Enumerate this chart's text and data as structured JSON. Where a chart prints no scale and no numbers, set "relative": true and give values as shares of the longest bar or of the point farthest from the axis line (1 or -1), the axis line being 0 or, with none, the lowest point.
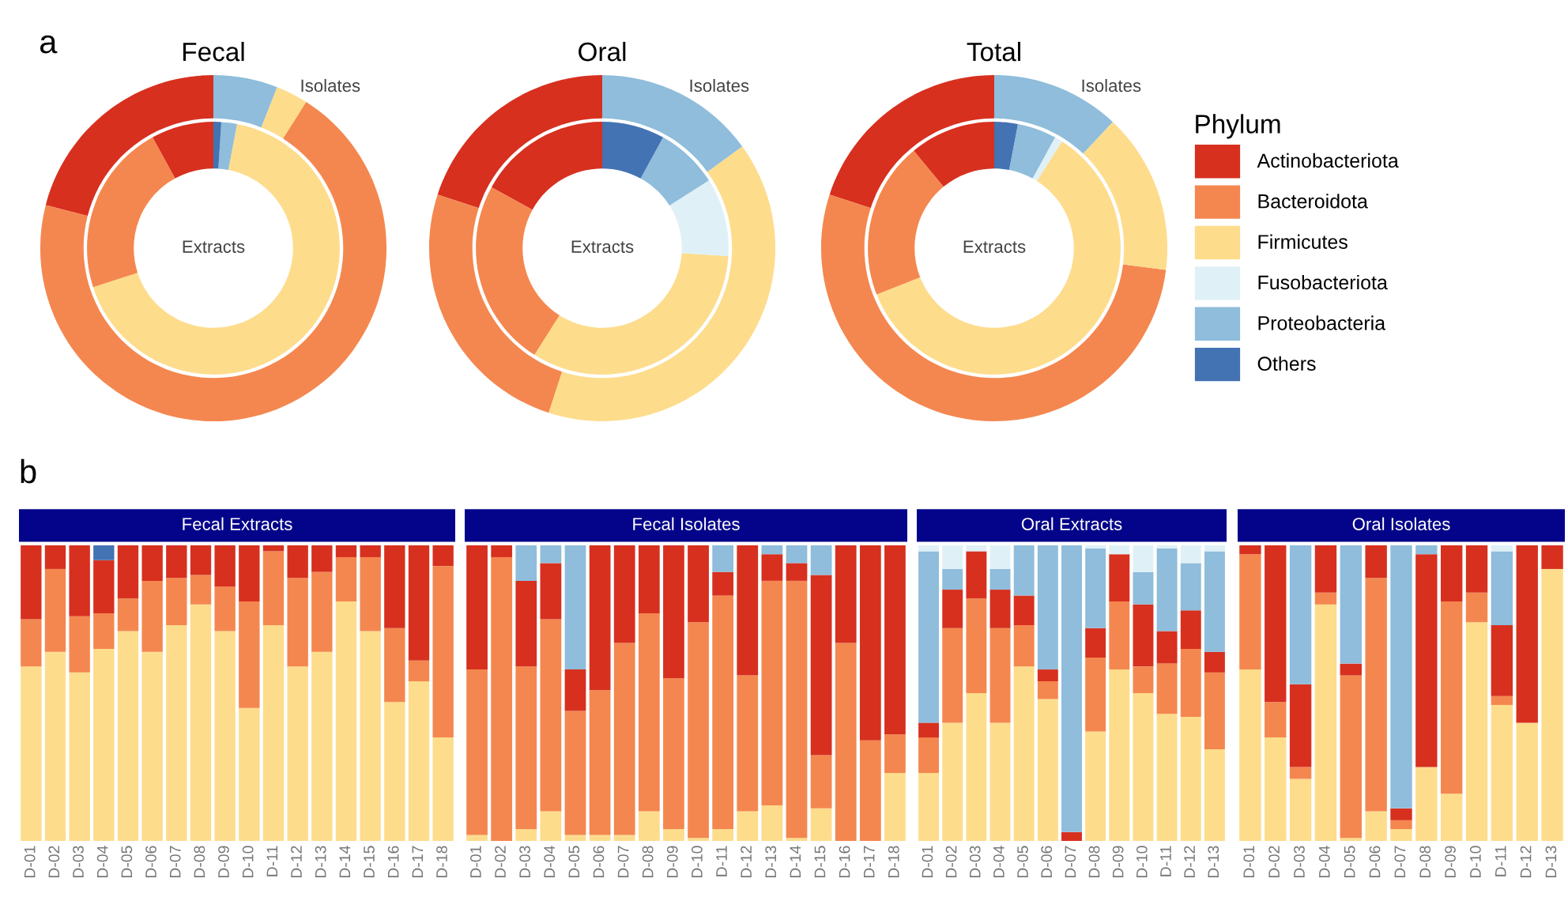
{
  "chart_data": [
    {
      "type": "donut",
      "title": "Fecal",
      "annotations": [
        "a"
      ],
      "categories": [
        null,
        null,
        null,
        null,
        null,
        null
      ],
      "colors": [
        "#d7301f",
        "#f4874f",
        "#fddc8c",
        "#dff1f7",
        "#8fbddb",
        "#4373b3"
      ],
      "series": [
        {
          "name": "Extracts",
          "values": [
            8,
            22,
            67,
            0,
            2,
            1
          ]
        },
        {
          "name": "Isolates",
          "values": [
            21,
            70,
            3,
            0,
            6,
            0
          ]
        }
      ]
    },
    {
      "type": "donut",
      "title": "Oral",
      "categories": [
        null,
        null,
        null,
        null,
        null,
        null
      ],
      "colors": [
        "#d7301f",
        "#f4874f",
        "#fddc8c",
        "#dff1f7",
        "#8fbddb",
        "#4373b3"
      ],
      "series": [
        {
          "name": "Extracts",
          "values": [
            17,
            24,
            33,
            10,
            8,
            8
          ]
        },
        {
          "name": "Isolates",
          "values": [
            20,
            25,
            40,
            0,
            15,
            0
          ]
        }
      ]
    },
    {
      "type": "donut",
      "title": "Total",
      "legend_title": "Phylum",
      "legend": "right",
      "categories": [
        "Actinobacteriota",
        "Bacteroidota",
        "Firmicutes",
        "Fusobacteriota",
        "Proteobacteria",
        "Others"
      ],
      "colors": [
        "#d7301f",
        "#f4874f",
        "#fddc8c",
        "#dff1f7",
        "#8fbddb",
        "#4373b3"
      ],
      "series": [
        {
          "name": "Extracts",
          "values": [
            11,
            20,
            60,
            1,
            5,
            3
          ]
        },
        {
          "name": "Isolates",
          "values": [
            20,
            53,
            15,
            0,
            12,
            0
          ]
        }
      ]
    },
    {
      "type": "bar",
      "title": "Fecal Extracts",
      "annotations": [
        "b"
      ],
      "stacked": true,
      "relative": true,
      "categories": [
        "D-01",
        "D-02",
        "D-03",
        "D-04",
        "D-05",
        "D-06",
        "D-07",
        "D-08",
        "D-09",
        "D-10",
        "D-11",
        "D-12",
        "D-13",
        "D-14",
        "D-15",
        "D-16",
        "D-17",
        "D-18"
      ],
      "series": [
        {
          "color": "#fddc8c",
          "values": [
            0.59,
            0.64,
            0.57,
            0.65,
            0.71,
            0.64,
            0.73,
            0.8,
            0.71,
            0.45,
            0.73,
            0.59,
            0.64,
            0.81,
            0.71,
            0.47,
            0.54,
            0.35
          ]
        },
        {
          "color": "#f4874f",
          "values": [
            0.16,
            0.28,
            0.19,
            0.12,
            0.11,
            0.24,
            0.16,
            0.1,
            0.15,
            0.36,
            0.25,
            0.3,
            0.27,
            0.15,
            0.25,
            0.25,
            0.07,
            0.58
          ]
        },
        {
          "color": "#d7301f",
          "values": [
            0.25,
            0.08,
            0.24,
            0.18,
            0.18,
            0.12,
            0.11,
            0.1,
            0.14,
            0.19,
            0.02,
            0.11,
            0.09,
            0.04,
            0.04,
            0.28,
            0.39,
            0.07
          ]
        },
        {
          "color": "#4373b3",
          "values": [
            0,
            0,
            0,
            0.05,
            0,
            0,
            0,
            0,
            0,
            0,
            0,
            0,
            0,
            0,
            0,
            0,
            0,
            0
          ]
        }
      ]
    },
    {
      "type": "bar",
      "title": "Fecal Isolates",
      "stacked": true,
      "relative": true,
      "categories": [
        "D-01",
        "D-02",
        "D-03",
        "D-04",
        "D-05",
        "D-06",
        "D-07",
        "D-08",
        "D-09",
        "D-10",
        "D-11",
        "D-12",
        "D-13",
        "D-14",
        "D-15",
        "D-16",
        "D-17",
        "D-18"
      ],
      "series": [
        {
          "color": "#fddc8c",
          "values": [
            0.02,
            0,
            0.04,
            0.1,
            0.02,
            0.02,
            0.02,
            0.1,
            0.04,
            0.01,
            0.04,
            0.1,
            0.12,
            0.01,
            0.11,
            0,
            0,
            0.23
          ]
        },
        {
          "color": "#f4874f",
          "values": [
            0.56,
            0.96,
            0.55,
            0.65,
            0.42,
            0.49,
            0.65,
            0.67,
            0.51,
            0.73,
            0.79,
            0.46,
            0.76,
            0.87,
            0.18,
            0.67,
            0.34,
            0.13
          ]
        },
        {
          "color": "#d7301f",
          "values": [
            0.42,
            0.04,
            0.29,
            0.19,
            0.14,
            0.49,
            0.33,
            0.23,
            0.45,
            0.26,
            0.08,
            0.44,
            0.09,
            0.06,
            0.61,
            0.33,
            0.66,
            0.64
          ]
        },
        {
          "color": "#8fbddb",
          "values": [
            0,
            0,
            0.12,
            0.06,
            0.42,
            0,
            0,
            0,
            0,
            0,
            0.09,
            0,
            0.03,
            0.06,
            0.1,
            0,
            0,
            0
          ]
        }
      ]
    },
    {
      "type": "bar",
      "title": "Oral Extracts",
      "stacked": true,
      "relative": true,
      "categories": [
        "D-01",
        "D-02",
        "D-03",
        "D-04",
        "D-05",
        "D-06",
        "D-07",
        "D-08",
        "D-09",
        "D-10",
        "D-11",
        "D-12",
        "D-13"
      ],
      "series": [
        {
          "color": "#fddc8c",
          "values": [
            0.23,
            0.4,
            0.5,
            0.4,
            0.59,
            0.48,
            0,
            0.37,
            0.58,
            0.5,
            0.43,
            0.42,
            0.31
          ]
        },
        {
          "color": "#f4874f",
          "values": [
            0.12,
            0.32,
            0.32,
            0.32,
            0.14,
            0.06,
            0,
            0.25,
            0.23,
            0.09,
            0.17,
            0.23,
            0.26
          ]
        },
        {
          "color": "#d7301f",
          "values": [
            0.05,
            0.13,
            0.16,
            0.13,
            0.1,
            0.04,
            0.03,
            0.1,
            0.16,
            0.21,
            0.11,
            0.13,
            0.07
          ]
        },
        {
          "color": "#8fbddb",
          "values": [
            0.58,
            0.07,
            0,
            0.07,
            0.17,
            0.42,
            0.97,
            0.27,
            0,
            0.11,
            0.28,
            0.16,
            0.34
          ]
        },
        {
          "color": "#dff1f7",
          "values": [
            0.02,
            0.08,
            0.02,
            0.08,
            0,
            0,
            0,
            0.01,
            0.03,
            0.09,
            0.01,
            0.06,
            0.02
          ]
        }
      ]
    },
    {
      "type": "bar",
      "title": "Oral Isolates",
      "stacked": true,
      "relative": true,
      "categories": [
        "D-01",
        "D-02",
        "D-03",
        "D-04",
        "D-05",
        "D-06",
        "D-07",
        "D-08",
        "D-09",
        "D-10",
        "D-11",
        "D-12",
        "D-13"
      ],
      "series": [
        {
          "color": "#fddc8c",
          "values": [
            0.58,
            0.35,
            0.21,
            0.8,
            0.01,
            0.1,
            0.04,
            0.25,
            0.16,
            0.74,
            0.46,
            0.4,
            0.92
          ]
        },
        {
          "color": "#f4874f",
          "values": [
            0.39,
            0.12,
            0.04,
            0.04,
            0.55,
            0.79,
            0.03,
            0,
            0.65,
            0.1,
            0.03,
            0,
            0
          ]
        },
        {
          "color": "#d7301f",
          "values": [
            0.03,
            0.53,
            0.28,
            0.16,
            0.04,
            0.11,
            0.04,
            0.72,
            0.19,
            0.16,
            0.24,
            0.6,
            0.08
          ]
        },
        {
          "color": "#8fbddb",
          "values": [
            0,
            0,
            0.47,
            0,
            0.4,
            0,
            0.89,
            0.03,
            0,
            0,
            0.25,
            0,
            0
          ]
        },
        {
          "color": "#dff1f7",
          "values": [
            0,
            0,
            0,
            0,
            0,
            0,
            0,
            0,
            0,
            0,
            0.02,
            0,
            0
          ]
        }
      ]
    }
  ]
}
